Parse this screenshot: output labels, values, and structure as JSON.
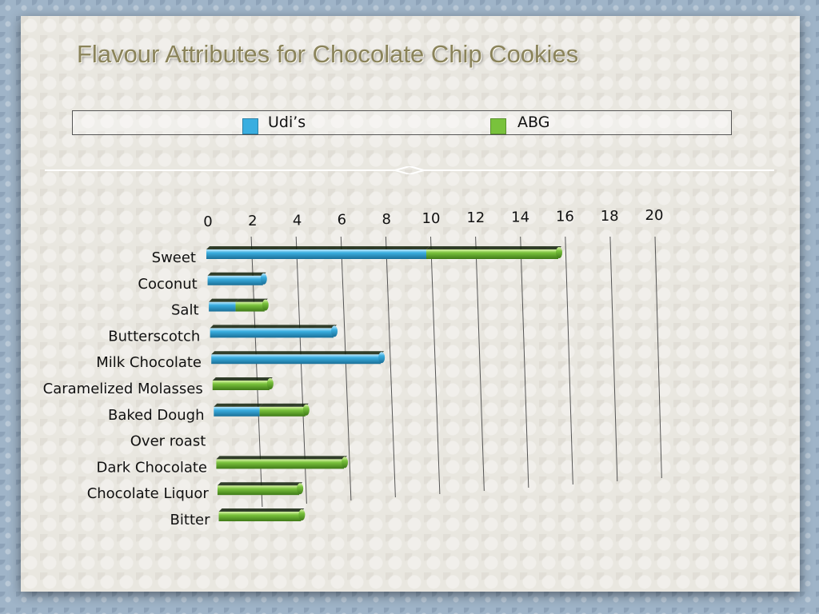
{
  "title": "Flavour Attributes for Chocolate Chip Cookies",
  "legend": {
    "items": [
      {
        "label": "Udi’s",
        "color": "#3aaee0"
      },
      {
        "label": "ABG",
        "color": "#79c23c"
      }
    ]
  },
  "chart_data": {
    "type": "bar",
    "orientation": "horizontal",
    "stacked": true,
    "title": "Flavour Attributes for Chocolate Chip Cookies",
    "categories": [
      "Sweet",
      "Coconut",
      "Salt",
      "Butterscotch",
      "Milk Chocolate",
      "Caramelized Molasses",
      "Baked Dough",
      "Over roast",
      "Dark Chocolate",
      "Chocolate Liquor",
      "Bitter"
    ],
    "series": [
      {
        "name": "Udi’s",
        "color": "#3aaee0",
        "values": [
          10,
          2.5,
          1.2,
          5.5,
          7.5,
          0,
          2,
          0,
          0,
          0,
          0
        ]
      },
      {
        "name": "ABG",
        "color": "#79c23c",
        "values": [
          6,
          0,
          1.3,
          0,
          0,
          2.5,
          2,
          0,
          5.5,
          3.5,
          3.5
        ]
      }
    ],
    "xticks": [
      "0",
      "2",
      "4",
      "6",
      "8",
      "10",
      "12",
      "14",
      "16",
      "18",
      "20"
    ],
    "xlim": [
      0,
      20
    ],
    "grid": true,
    "legend_position": "top"
  }
}
